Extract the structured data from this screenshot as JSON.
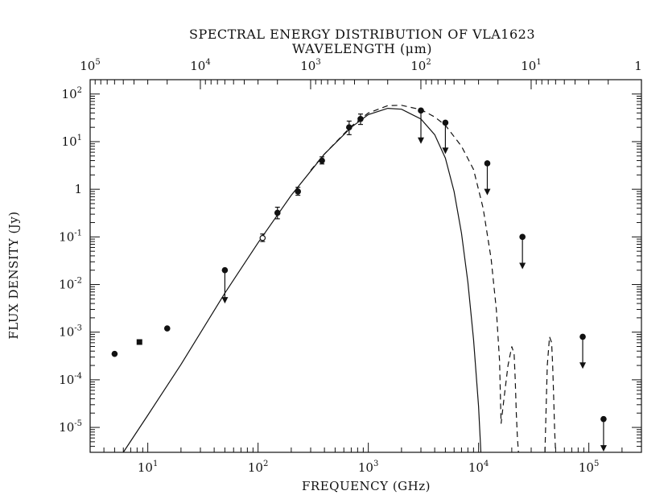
{
  "chart_data": {
    "type": "scatter",
    "title_line1": "SPECTRAL ENERGY DISTRIBUTION OF VLA1623",
    "title_line2": "WAVELENGTH (μm)",
    "xlabel": "FREQUENCY (GHz)",
    "ylabel": "FLUX DENSITY (Jy)",
    "x_scale": "log",
    "y_scale": "log",
    "xlim": [
      3,
      300000
    ],
    "ylim": [
      3e-06,
      200
    ],
    "x_ticks": [
      {
        "value": 10,
        "base": "10",
        "exp": "1"
      },
      {
        "value": 100,
        "base": "10",
        "exp": "2"
      },
      {
        "value": 1000,
        "base": "10",
        "exp": "3"
      },
      {
        "value": 10000,
        "base": "10",
        "exp": "4"
      },
      {
        "value": 100000,
        "base": "10",
        "exp": "5"
      }
    ],
    "y_ticks": [
      {
        "value": 100,
        "base": "10",
        "exp": "2"
      },
      {
        "value": 10,
        "base": "10",
        "exp": "1"
      },
      {
        "value": 1,
        "base": "1",
        "exp": ""
      },
      {
        "value": 0.1,
        "base": "10",
        "exp": "-1"
      },
      {
        "value": 0.01,
        "base": "10",
        "exp": "-2"
      },
      {
        "value": 0.001,
        "base": "10",
        "exp": "-3"
      },
      {
        "value": 0.0001,
        "base": "10",
        "exp": "-4"
      },
      {
        "value": 1e-05,
        "base": "10",
        "exp": "-5"
      }
    ],
    "top_ticks": [
      {
        "value": 100000,
        "base": "10",
        "exp": "5"
      },
      {
        "value": 10000,
        "base": "10",
        "exp": "4"
      },
      {
        "value": 1000,
        "base": "10",
        "exp": "3"
      },
      {
        "value": 100,
        "base": "10",
        "exp": "2"
      },
      {
        "value": 10,
        "base": "10",
        "exp": "1"
      },
      {
        "value": 1,
        "base": "1",
        "exp": ""
      }
    ],
    "series": [
      {
        "name": "detections",
        "points": [
          {
            "x": 5,
            "y": 0.00035
          },
          {
            "x": 8.4,
            "y": 0.00062,
            "marker": "square"
          },
          {
            "x": 15,
            "y": 0.0012
          },
          {
            "x": 110,
            "y": 0.095,
            "err": [
              0.08,
              0.115
            ],
            "marker": "open"
          },
          {
            "x": 150,
            "y": 0.32,
            "err": [
              0.24,
              0.42
            ]
          },
          {
            "x": 230,
            "y": 0.9,
            "err": [
              0.75,
              1.1
            ]
          },
          {
            "x": 380,
            "y": 4.0,
            "err": [
              3.4,
              4.8
            ]
          },
          {
            "x": 670,
            "y": 20,
            "err": [
              14,
              27
            ]
          },
          {
            "x": 850,
            "y": 30,
            "err": [
              23,
              38
            ]
          }
        ]
      },
      {
        "name": "upper_limits",
        "points": [
          {
            "x": 50,
            "y": 0.02,
            "tip": 0.004
          },
          {
            "x": 3000,
            "y": 45,
            "tip": 9
          },
          {
            "x": 5000,
            "y": 25,
            "tip": 5.5
          },
          {
            "x": 12000,
            "y": 3.5,
            "tip": 0.75
          },
          {
            "x": 25000,
            "y": 0.1,
            "tip": 0.021
          },
          {
            "x": 88000,
            "y": 0.0008,
            "tip": 0.00017
          },
          {
            "x": 136000,
            "y": 1.5e-05,
            "tip": 3.1e-06
          }
        ]
      },
      {
        "name": "model_solid",
        "style": "solid",
        "x": [
          6,
          10,
          20,
          50,
          100,
          200,
          400,
          700,
          1000,
          1500,
          2000,
          3000,
          4000,
          5000,
          6000,
          7000,
          8000,
          9000,
          10000,
          10500
        ],
        "y": [
          3e-06,
          1.8e-05,
          0.00021,
          0.0066,
          0.075,
          0.75,
          5.5,
          20,
          37,
          50,
          48,
          30,
          14,
          4.5,
          0.9,
          0.12,
          0.011,
          0.0007,
          2.8e-05,
          3e-06
        ]
      },
      {
        "name": "model_dashed",
        "style": "dashed",
        "segments": [
          {
            "x": [
              300,
              400,
              700,
              1000,
              1500,
              2000,
              3000,
              4000,
              5000,
              7000,
              9000,
              11000,
              13000,
              14500,
              15500,
              16000,
              17000,
              18500,
              20000,
              21000,
              21500,
              22000,
              22500,
              23000
            ],
            "y": [
              2.5,
              5.5,
              21,
              40,
              57,
              58,
              47,
              33,
              22,
              8,
              2.6,
              0.4,
              0.035,
              0.003,
              0.00025,
              1.2e-05,
              4e-05,
              0.0002,
              0.0005,
              0.00035,
              0.0001,
              2e-05,
              6e-06,
              3e-06
            ]
          },
          {
            "x": [
              40000,
              42000,
              44000,
              46000,
              47000,
              48000,
              49000,
              50000
            ],
            "y": [
              3e-06,
              0.0002,
              0.0008,
              0.0006,
              0.0002,
              4e-05,
              8e-06,
              3e-06
            ]
          }
        ]
      }
    ]
  }
}
